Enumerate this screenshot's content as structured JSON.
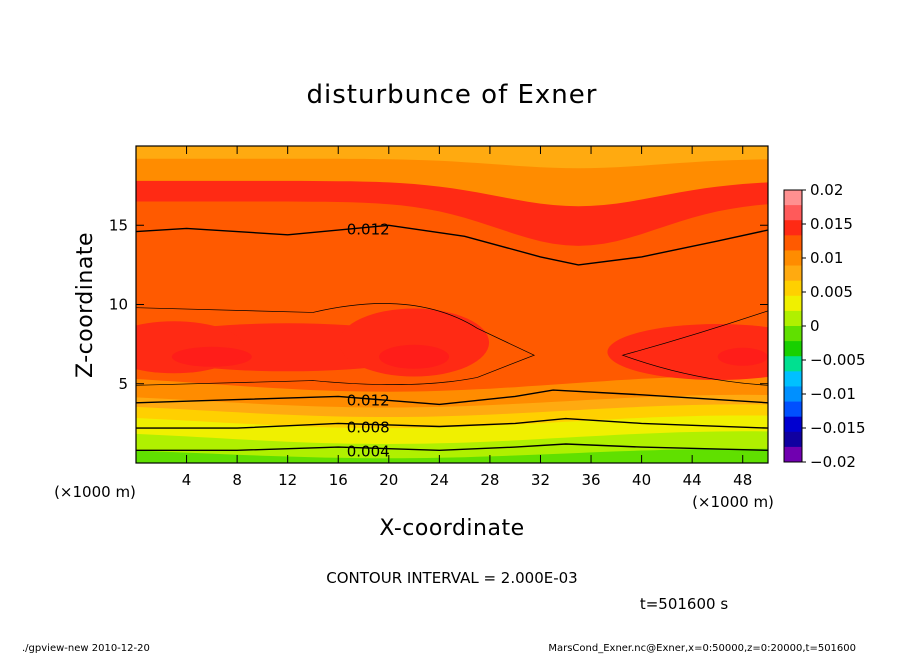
{
  "chart_data": {
    "type": "heatmap",
    "title": "disturbunce of Exner",
    "xlabel": "X-coordinate",
    "ylabel": "Z-coordinate",
    "x_unit": "(×1000 m)",
    "y_unit": "(×1000 m)",
    "xlim": [
      0,
      50
    ],
    "ylim": [
      0,
      20
    ],
    "x_ticks": [
      4,
      8,
      12,
      16,
      20,
      24,
      28,
      32,
      36,
      40,
      44,
      48
    ],
    "y_ticks": [
      5,
      10,
      15
    ],
    "contour_interval_text": "CONTOUR INTERVAL = 2.000E-03",
    "time_text": "t=501600 s",
    "colorbar": {
      "min": -0.02,
      "max": 0.02,
      "step": 0.0025,
      "labels": [
        "0.02",
        "0.015",
        "0.01",
        "0.005",
        "0",
        "−0.005",
        "−0.01",
        "−0.015",
        "−0.02"
      ],
      "colors": [
        "#ff9090",
        "#ff5a5a",
        "#ff2a14",
        "#ff5a00",
        "#ff8c00",
        "#ffaa10",
        "#ffd000",
        "#f0f000",
        "#b0f000",
        "#60e000",
        "#18d000",
        "#00e090",
        "#00c0ff",
        "#0090ff",
        "#0050ff",
        "#0000d0",
        "#1000a0",
        "#7000b0"
      ]
    },
    "contours": [
      {
        "label": "0.004",
        "points": [
          [
            0,
            0.8
          ],
          [
            8,
            0.8
          ],
          [
            16,
            1.0
          ],
          [
            24,
            0.8
          ],
          [
            30,
            1.0
          ],
          [
            34,
            1.2
          ],
          [
            40,
            1.0
          ],
          [
            50,
            0.8
          ]
        ]
      },
      {
        "label": "0.008",
        "points": [
          [
            0,
            2.2
          ],
          [
            8,
            2.2
          ],
          [
            16,
            2.5
          ],
          [
            24,
            2.3
          ],
          [
            30,
            2.5
          ],
          [
            34,
            2.8
          ],
          [
            40,
            2.5
          ],
          [
            50,
            2.2
          ]
        ]
      },
      {
        "label": "0.012",
        "points": [
          [
            0,
            3.8
          ],
          [
            8,
            4.0
          ],
          [
            16,
            4.2
          ],
          [
            24,
            3.7
          ],
          [
            30,
            4.2
          ],
          [
            33,
            4.6
          ],
          [
            40,
            4.3
          ],
          [
            50,
            3.8
          ]
        ]
      },
      {
        "label": "0.012",
        "points": [
          [
            0,
            14.6
          ],
          [
            4,
            14.8
          ],
          [
            12,
            14.4
          ],
          [
            20,
            15.0
          ],
          [
            26,
            14.3
          ],
          [
            32,
            13.0
          ],
          [
            35,
            12.5
          ],
          [
            40,
            13.0
          ],
          [
            46,
            14.0
          ],
          [
            50,
            14.7
          ]
        ]
      }
    ],
    "band_colors_bottom_to_top": [
      "#60e000",
      "#b0f000",
      "#f0f000",
      "#ffd000",
      "#ffaa10",
      "#ff8c00",
      "#ff5a00",
      "#ff2a14",
      "#ff8c00",
      "#ffaa10"
    ]
  },
  "footer": {
    "left": "./gpview-new   2010-12-20",
    "right": "MarsCond_Exner.nc@Exner,x=0:50000,z=0:20000,t=501600"
  }
}
